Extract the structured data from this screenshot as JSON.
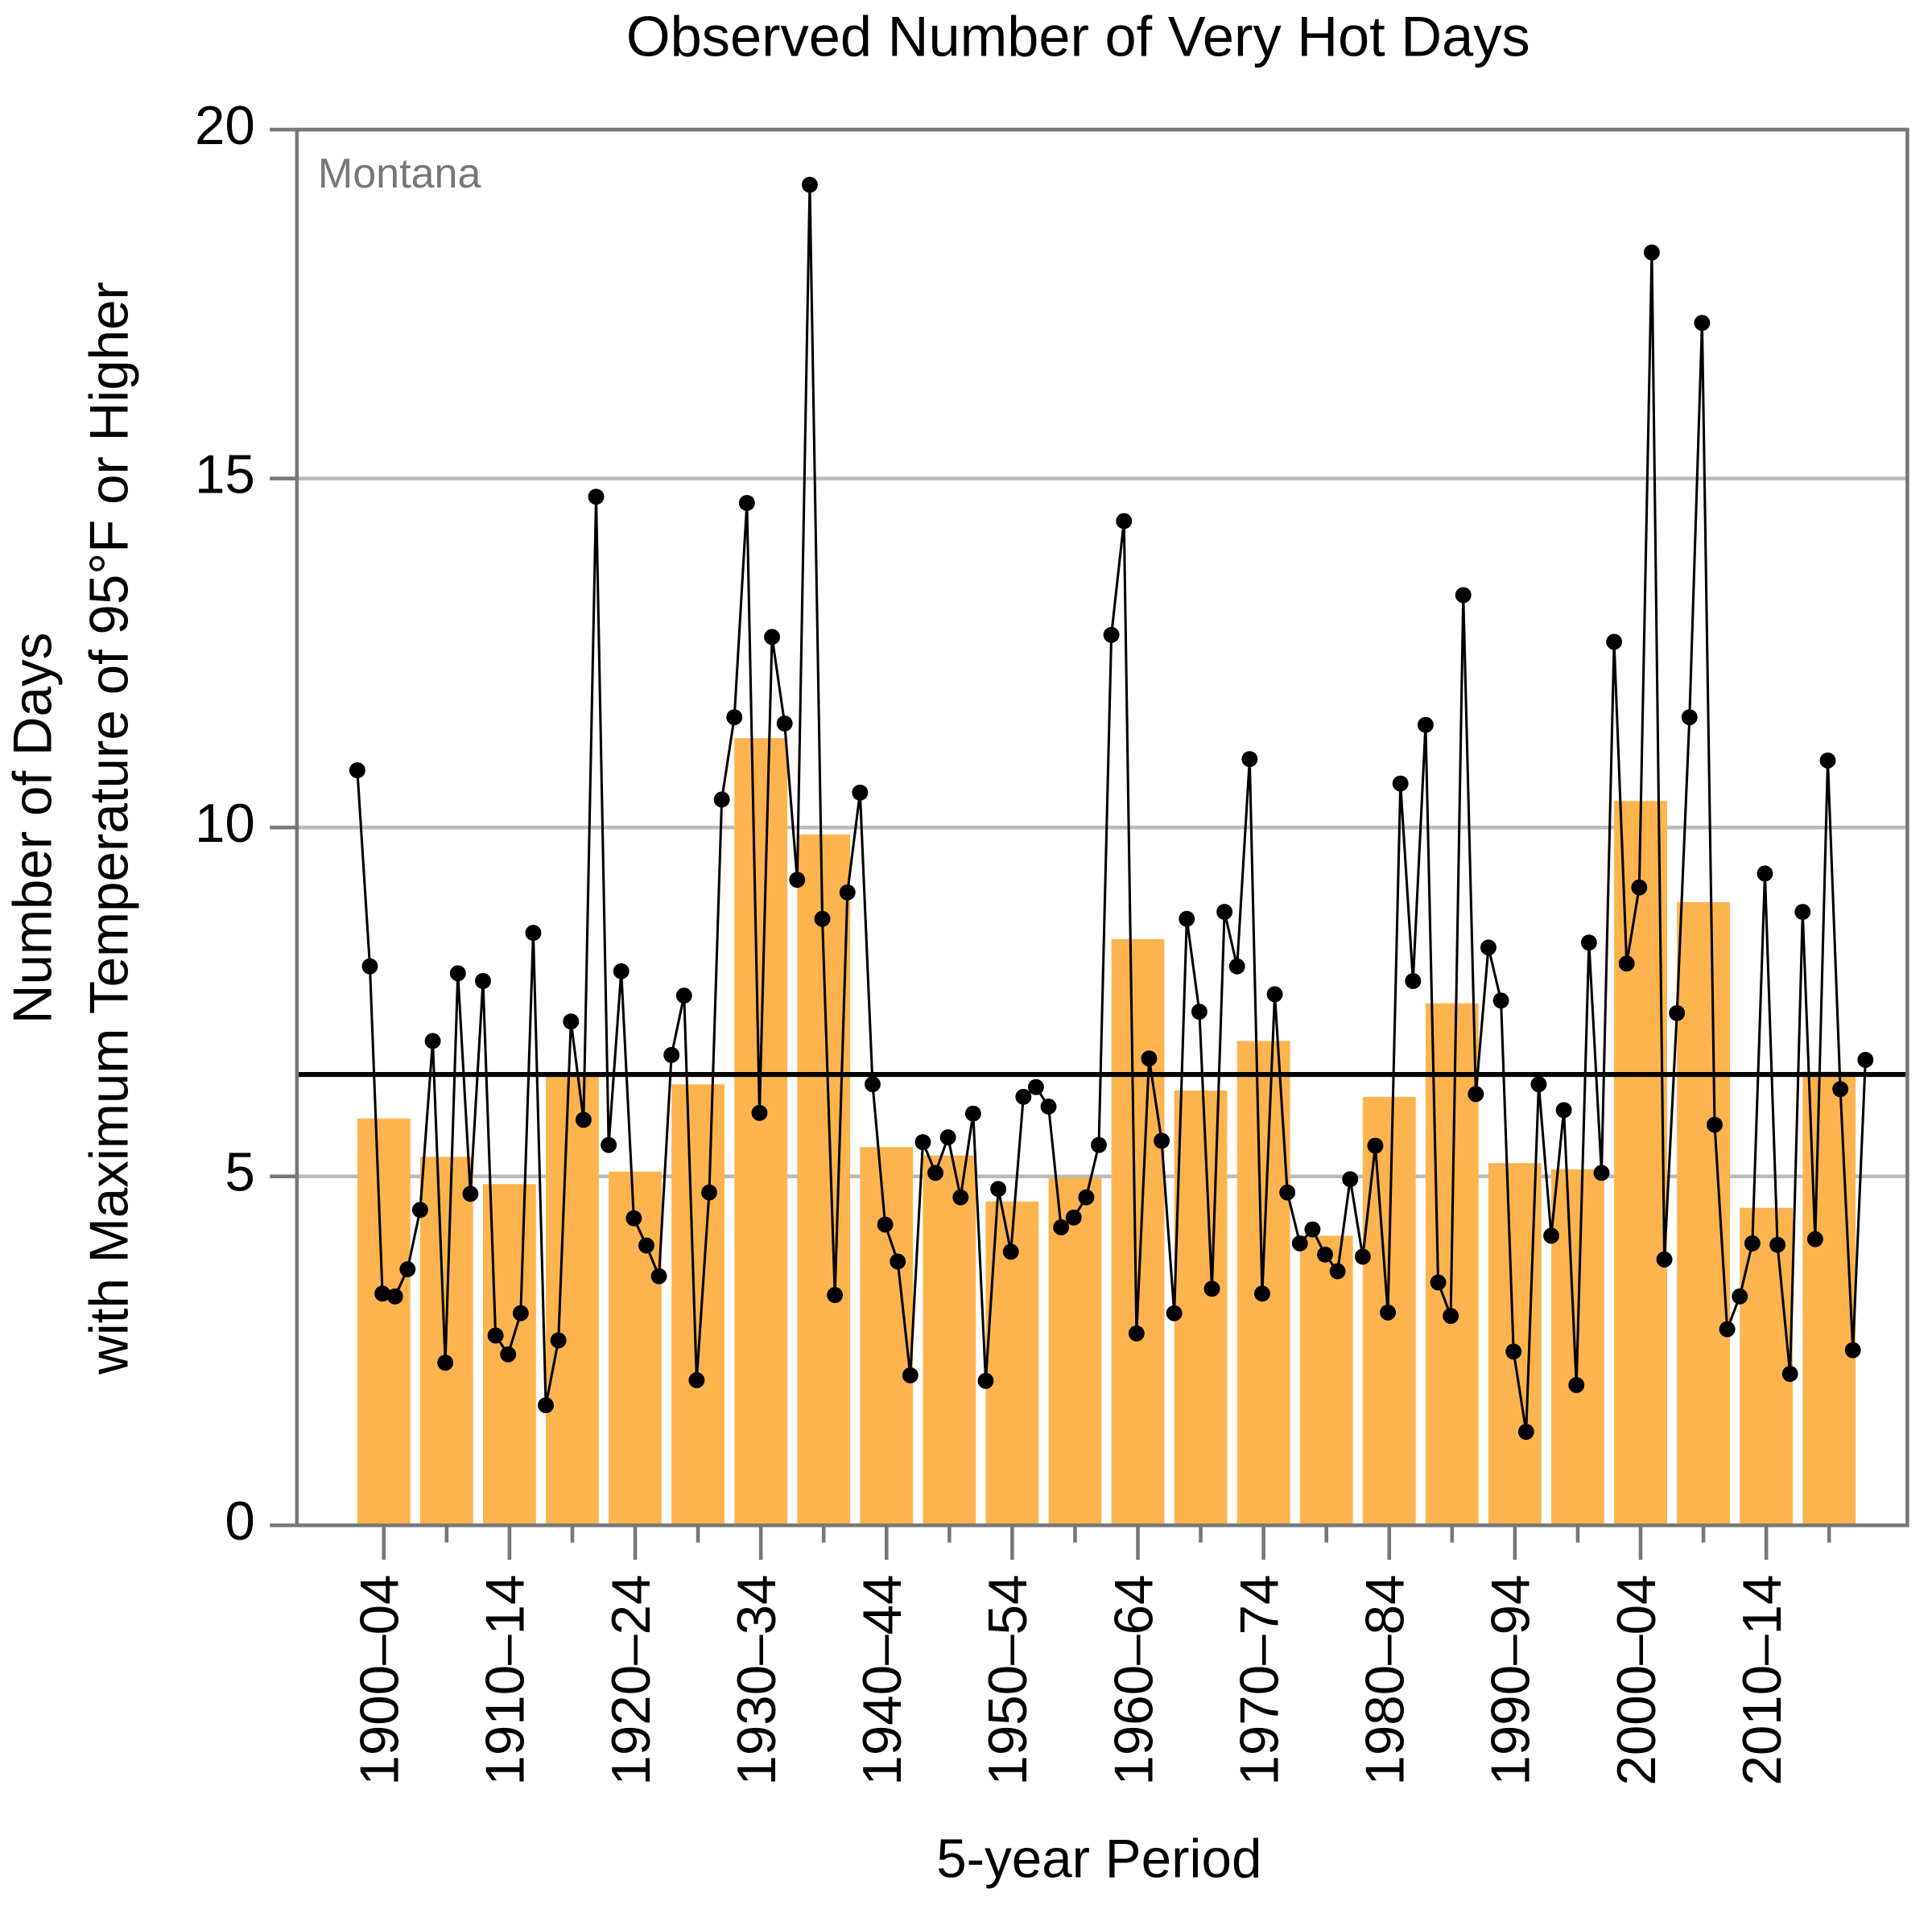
{
  "chart_data": {
    "type": "bar",
    "title": "Observed Number of Very Hot Days",
    "xlabel": "5-year Period",
    "ylabel": [
      "Number of Days",
      "with Maximum Temperature of 95°F or Higher"
    ],
    "annotation": "Montana",
    "categories": [
      "1900–04",
      null,
      "1910–14",
      null,
      "1920–24",
      null,
      "1930–34",
      null,
      "1940–44",
      null,
      "1950–54",
      null,
      "1960–64",
      null,
      "1970–74",
      null,
      "1980–84",
      null,
      "1990–94",
      null,
      "2000–04",
      null,
      "2010–14",
      null
    ],
    "values": [
      5.83,
      5.28,
      4.89,
      6.43,
      5.07,
      6.32,
      11.28,
      9.9,
      5.42,
      5.3,
      4.64,
      4.98,
      8.4,
      6.23,
      6.94,
      4.15,
      6.14,
      7.48,
      5.19,
      5.1,
      10.38,
      8.93,
      4.55,
      6.5
    ],
    "color": "#fdb44e",
    "line": {
      "color": "#000000",
      "values": [
        10.82,
        8.01,
        3.32,
        3.28,
        3.67,
        4.52,
        6.94,
        2.33,
        7.91,
        4.75,
        7.8,
        2.72,
        2.45,
        3.04,
        8.49,
        1.72,
        2.65,
        7.22,
        5.81,
        14.74,
        5.45,
        7.94,
        4.4,
        4.01,
        3.57,
        6.74,
        7.59,
        2.08,
        4.77,
        10.4,
        11.58,
        14.65,
        5.91,
        12.73,
        11.49,
        9.25,
        19.21,
        8.69,
        3.3,
        9.07,
        10.5,
        6.32,
        4.31,
        3.78,
        2.15,
        5.49,
        5.05,
        5.56,
        4.7,
        5.9,
        2.07,
        4.82,
        3.92,
        6.14,
        6.28,
        6.0,
        4.27,
        4.41,
        4.7,
        5.45,
        12.76,
        14.39,
        2.75,
        6.69,
        5.51,
        3.04,
        8.69,
        7.36,
        3.39,
        8.79,
        8.01,
        10.98,
        3.32,
        7.61,
        4.77,
        4.04,
        4.24,
        3.88,
        3.64,
        4.96,
        3.85,
        5.44,
        3.05,
        10.63,
        7.8,
        11.47,
        3.48,
        3.0,
        13.33,
        6.18,
        8.28,
        7.52,
        2.49,
        1.34,
        6.32,
        4.15,
        5.95,
        2.01,
        8.35,
        5.05,
        12.66,
        8.05,
        9.14,
        18.24,
        3.81,
        7.34,
        11.58,
        17.23,
        5.74,
        2.81,
        3.28,
        4.04,
        9.34,
        4.02,
        2.17,
        8.79,
        4.1,
        10.96,
        6.25,
        2.51,
        6.67
      ]
    },
    "reference_line": 6.46,
    "ylim": [
      0,
      20
    ],
    "yticks": [
      0,
      5,
      10,
      15,
      20
    ],
    "grid": true
  }
}
